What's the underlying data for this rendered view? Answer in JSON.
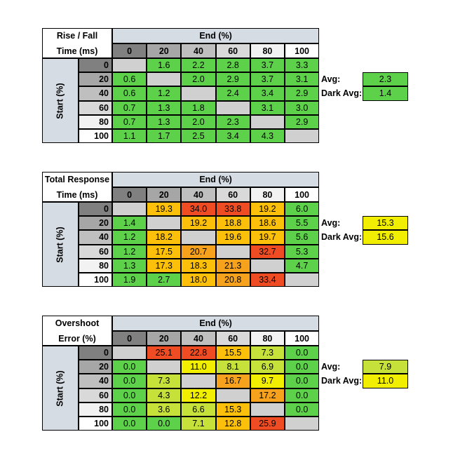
{
  "tables": [
    {
      "title_line1": "Rise / Fall",
      "title_line2": "Time (ms)",
      "end_label": "End (%)",
      "start_label": "Start (%)",
      "columns": [
        "0",
        "20",
        "40",
        "60",
        "80",
        "100"
      ],
      "rows": [
        {
          "label": "0",
          "cells": [
            null,
            "1.6",
            "2.2",
            "2.8",
            "3.7",
            "3.3"
          ]
        },
        {
          "label": "20",
          "cells": [
            "0.6",
            null,
            "2.0",
            "2.9",
            "3.7",
            "3.1"
          ]
        },
        {
          "label": "40",
          "cells": [
            "0.6",
            "1.2",
            null,
            "2.4",
            "3.4",
            "2.9"
          ]
        },
        {
          "label": "60",
          "cells": [
            "0.7",
            "1.3",
            "1.8",
            null,
            "3.1",
            "3.0"
          ]
        },
        {
          "label": "80",
          "cells": [
            "0.7",
            "1.3",
            "2.0",
            "2.3",
            null,
            "2.9"
          ]
        },
        {
          "label": "100",
          "cells": [
            "1.1",
            "1.7",
            "2.5",
            "3.4",
            "4.3",
            null
          ]
        }
      ],
      "avg_label": "Avg:",
      "avg": "2.3",
      "dark_avg_label": "Dark Avg:",
      "dark_avg": "1.4"
    },
    {
      "title_line1": "Total Response",
      "title_line2": "Time (ms)",
      "end_label": "End (%)",
      "start_label": "Start (%)",
      "columns": [
        "0",
        "20",
        "40",
        "60",
        "80",
        "100"
      ],
      "rows": [
        {
          "label": "0",
          "cells": [
            null,
            "19.3",
            "34.0",
            "33.8",
            "19.2",
            "6.0"
          ]
        },
        {
          "label": "20",
          "cells": [
            "1.4",
            null,
            "19.2",
            "18.8",
            "18.6",
            "5.5"
          ]
        },
        {
          "label": "40",
          "cells": [
            "1.2",
            "18.2",
            null,
            "19.6",
            "19.7",
            "5.6"
          ]
        },
        {
          "label": "60",
          "cells": [
            "1.2",
            "17.5",
            "20.7",
            null,
            "32.7",
            "5.3"
          ]
        },
        {
          "label": "80",
          "cells": [
            "1.3",
            "17.3",
            "18.3",
            "21.3",
            null,
            "4.7"
          ]
        },
        {
          "label": "100",
          "cells": [
            "1.9",
            "2.7",
            "18.0",
            "20.8",
            "33.4",
            null
          ]
        }
      ],
      "avg_label": "Avg:",
      "avg": "15.3",
      "dark_avg_label": "Dark Avg:",
      "dark_avg": "15.6"
    },
    {
      "title_line1": "Overshoot",
      "title_line2": "Error (%)",
      "end_label": "End (%)",
      "start_label": "Start (%)",
      "columns": [
        "0",
        "20",
        "40",
        "60",
        "80",
        "100"
      ],
      "rows": [
        {
          "label": "0",
          "cells": [
            null,
            "25.1",
            "22.8",
            "15.5",
            "7.3",
            "0.0"
          ]
        },
        {
          "label": "20",
          "cells": [
            "0.0",
            null,
            "11.0",
            "8.1",
            "6.9",
            "0.0"
          ]
        },
        {
          "label": "40",
          "cells": [
            "0.0",
            "7.3",
            null,
            "16.7",
            "9.7",
            "0.0"
          ]
        },
        {
          "label": "60",
          "cells": [
            "0.0",
            "4.3",
            "12.2",
            null,
            "17.2",
            "0.0"
          ]
        },
        {
          "label": "80",
          "cells": [
            "0.0",
            "3.6",
            "6.6",
            "15.3",
            null,
            "0.0"
          ]
        },
        {
          "label": "100",
          "cells": [
            "0.0",
            "0.0",
            "7.1",
            "12.8",
            "25.9",
            null
          ]
        }
      ],
      "avg_label": "Avg:",
      "avg": "7.9",
      "dark_avg_label": "Dark Avg:",
      "dark_avg": "11.0"
    }
  ]
}
